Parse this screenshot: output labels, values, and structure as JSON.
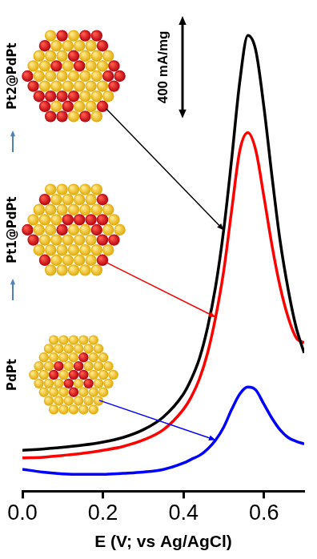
{
  "chart_data": {
    "type": "line",
    "x_label": "E (V; vs Ag/AgCl)",
    "x": [
      0,
      0.05,
      0.1,
      0.15,
      0.2,
      0.25,
      0.3,
      0.35,
      0.4,
      0.42,
      0.44,
      0.46,
      0.48,
      0.5,
      0.52,
      0.54,
      0.56,
      0.58,
      0.6,
      0.62,
      0.64,
      0.66,
      0.68,
      0.7
    ],
    "series": [
      {
        "name": "Pt2@PdPt",
        "color": "#000000",
        "values": [
          160,
          165,
          172,
          180,
          192,
          210,
          240,
          290,
          380,
          440,
          520,
          640,
          800,
          1020,
          1300,
          1600,
          1780,
          1720,
          1500,
          1230,
          980,
          790,
          640,
          540
        ]
      },
      {
        "name": "Pt1@PdPt",
        "color": "#ff0000",
        "values": [
          130,
          133,
          140,
          148,
          160,
          175,
          200,
          240,
          320,
          370,
          440,
          540,
          680,
          860,
          1100,
          1330,
          1400,
          1330,
          1150,
          960,
          800,
          680,
          600,
          580
        ]
      },
      {
        "name": "PdPt",
        "color": "#0000ff",
        "values": [
          86,
          75,
          68,
          66,
          66,
          70,
          75,
          85,
          110,
          125,
          140,
          165,
          200,
          250,
          320,
          380,
          407,
          395,
          340,
          285,
          240,
          210,
          195,
          185
        ]
      }
    ],
    "xlim": [
      0,
      0.7
    ],
    "xticks": [
      {
        "value": 0,
        "label": "0.0"
      },
      0.2,
      0.4,
      0.6
    ],
    "ylim": [
      0,
      1900
    ],
    "scale_bar": {
      "value": 400,
      "label": "400 mA/mg"
    },
    "grid": false,
    "tick_labels": "x"
  }
}
